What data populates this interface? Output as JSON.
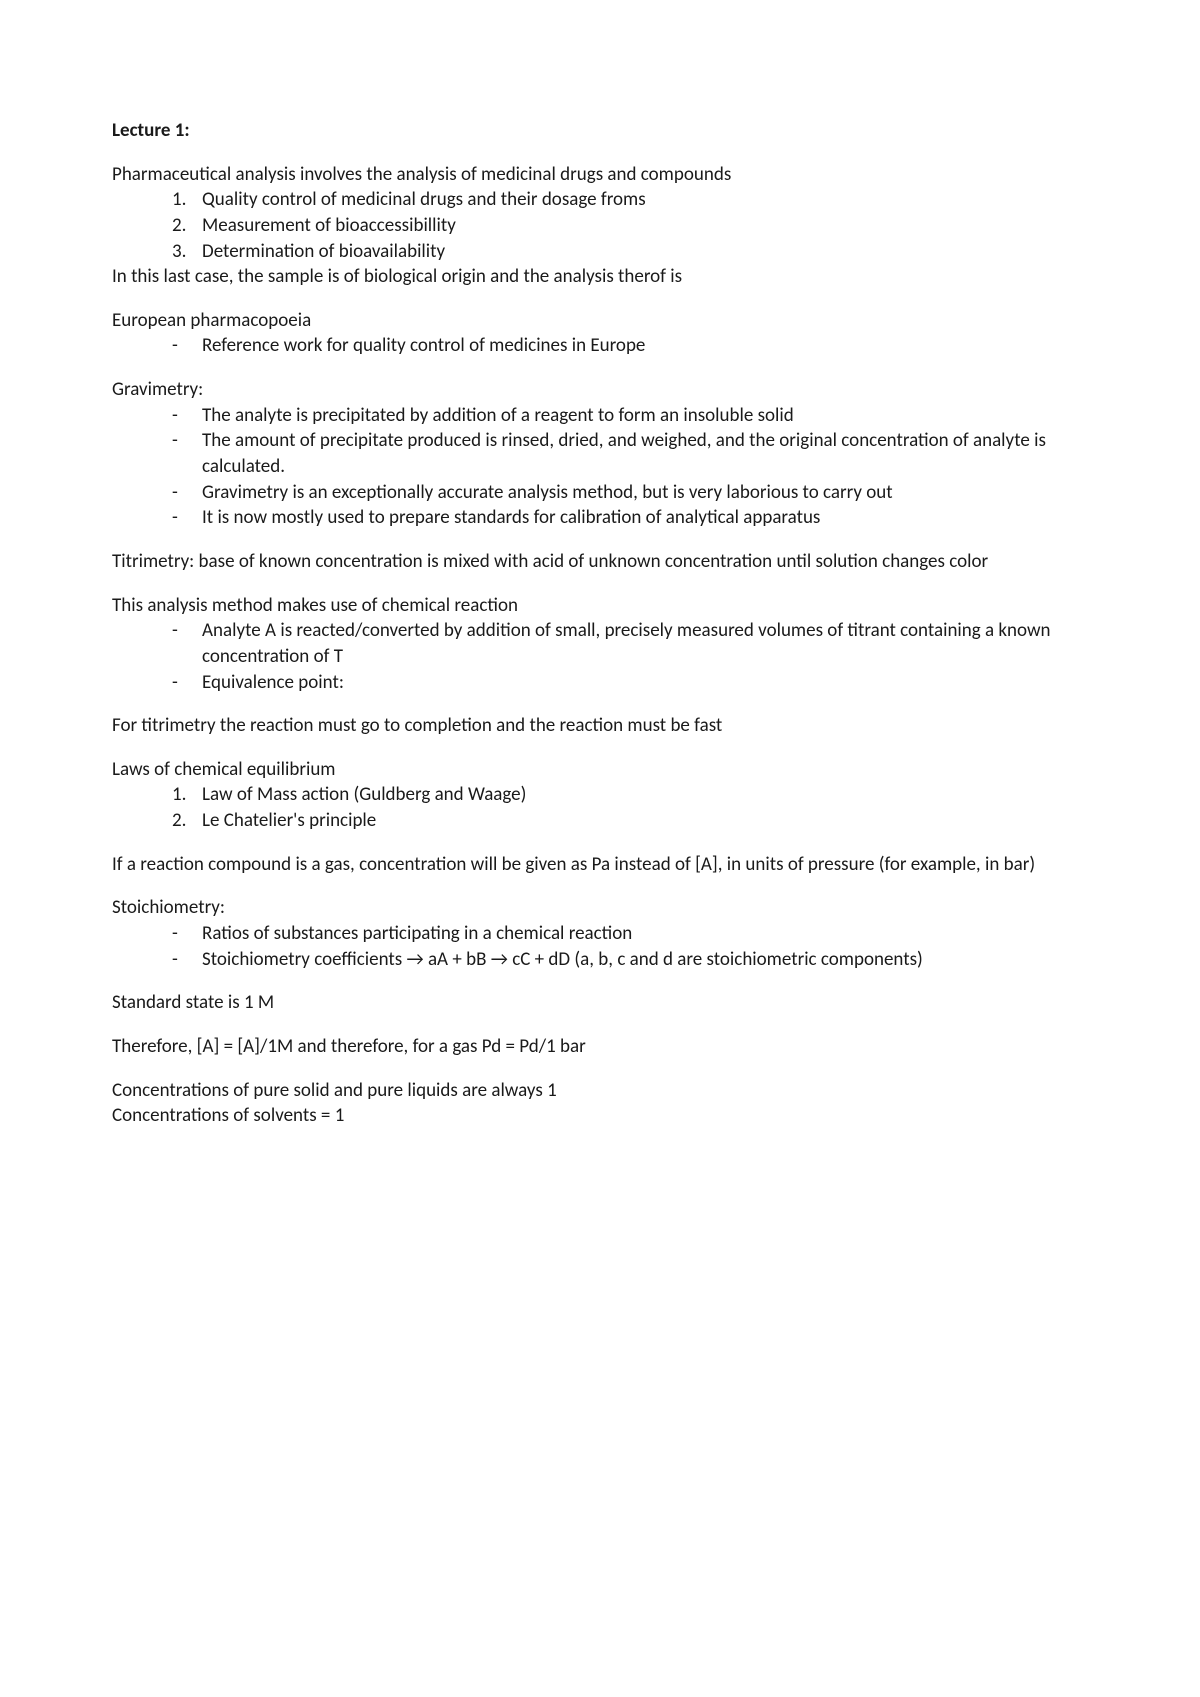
{
  "title": "Lecture 1:",
  "intro": "Pharmaceutical analysis involves the analysis of medicinal drugs and compounds",
  "intro_list": [
    "Quality control of medicinal drugs and their dosage froms",
    "Measurement of bioaccessibillity",
    "Determination of bioavailability"
  ],
  "intro_tail": "In this last case, the sample is of biological origin and the analysis therof is",
  "euro_hdr": "European pharmacopoeia",
  "euro_items": [
    "Reference work for quality control of medicines in Europe"
  ],
  "grav_hdr": "Gravimetry:",
  "grav_items": [
    "The analyte is precipitated by addition of a reagent to form an insoluble solid",
    "The amount of precipitate produced is rinsed, dried, and weighed, and the original concentration of analyte is calculated.",
    "Gravimetry is an exceptionally accurate analysis method, but is very laborious to carry out",
    "It is now mostly used to prepare standards for calibration of analytical apparatus"
  ],
  "titrimetry_def": "Titrimetry: base of known concentration is mixed with acid of unknown concentration until solution changes color",
  "method_hdr": "This analysis method makes use of chemical reaction",
  "method_items": [
    "Analyte A is reacted/converted by addition of small, precisely measured volumes of titrant containing a known concentration of T",
    "Equivalence point:"
  ],
  "titrimetry_req": "For titrimetry the reaction must go to completion and the reaction must be fast",
  "laws_hdr": "Laws of chemical equilibrium",
  "laws_items": [
    "Law of Mass action (Guldberg and Waage)",
    "Le Chatelier's principle"
  ],
  "gas_note": "If a reaction compound is a gas, concentration will be given as Pa instead of [A], in units of pressure (for example, in bar)",
  "stoich_hdr": "Stoichiometry:",
  "stoich_items": [
    "Ratios of substances participating in a chemical reaction",
    "Stoichiometry coefficients → aA + bB → cC + dD (a, b, c and d are stoichiometric components)"
  ],
  "std_state": "Standard state is 1 M",
  "therefore": "Therefore, [A] = [A]/1M and therefore, for a gas Pd = Pd/1 bar",
  "conc1": "Concentrations of pure solid and pure liquids are always 1",
  "conc2": "Concentrations of solvents = 1"
}
